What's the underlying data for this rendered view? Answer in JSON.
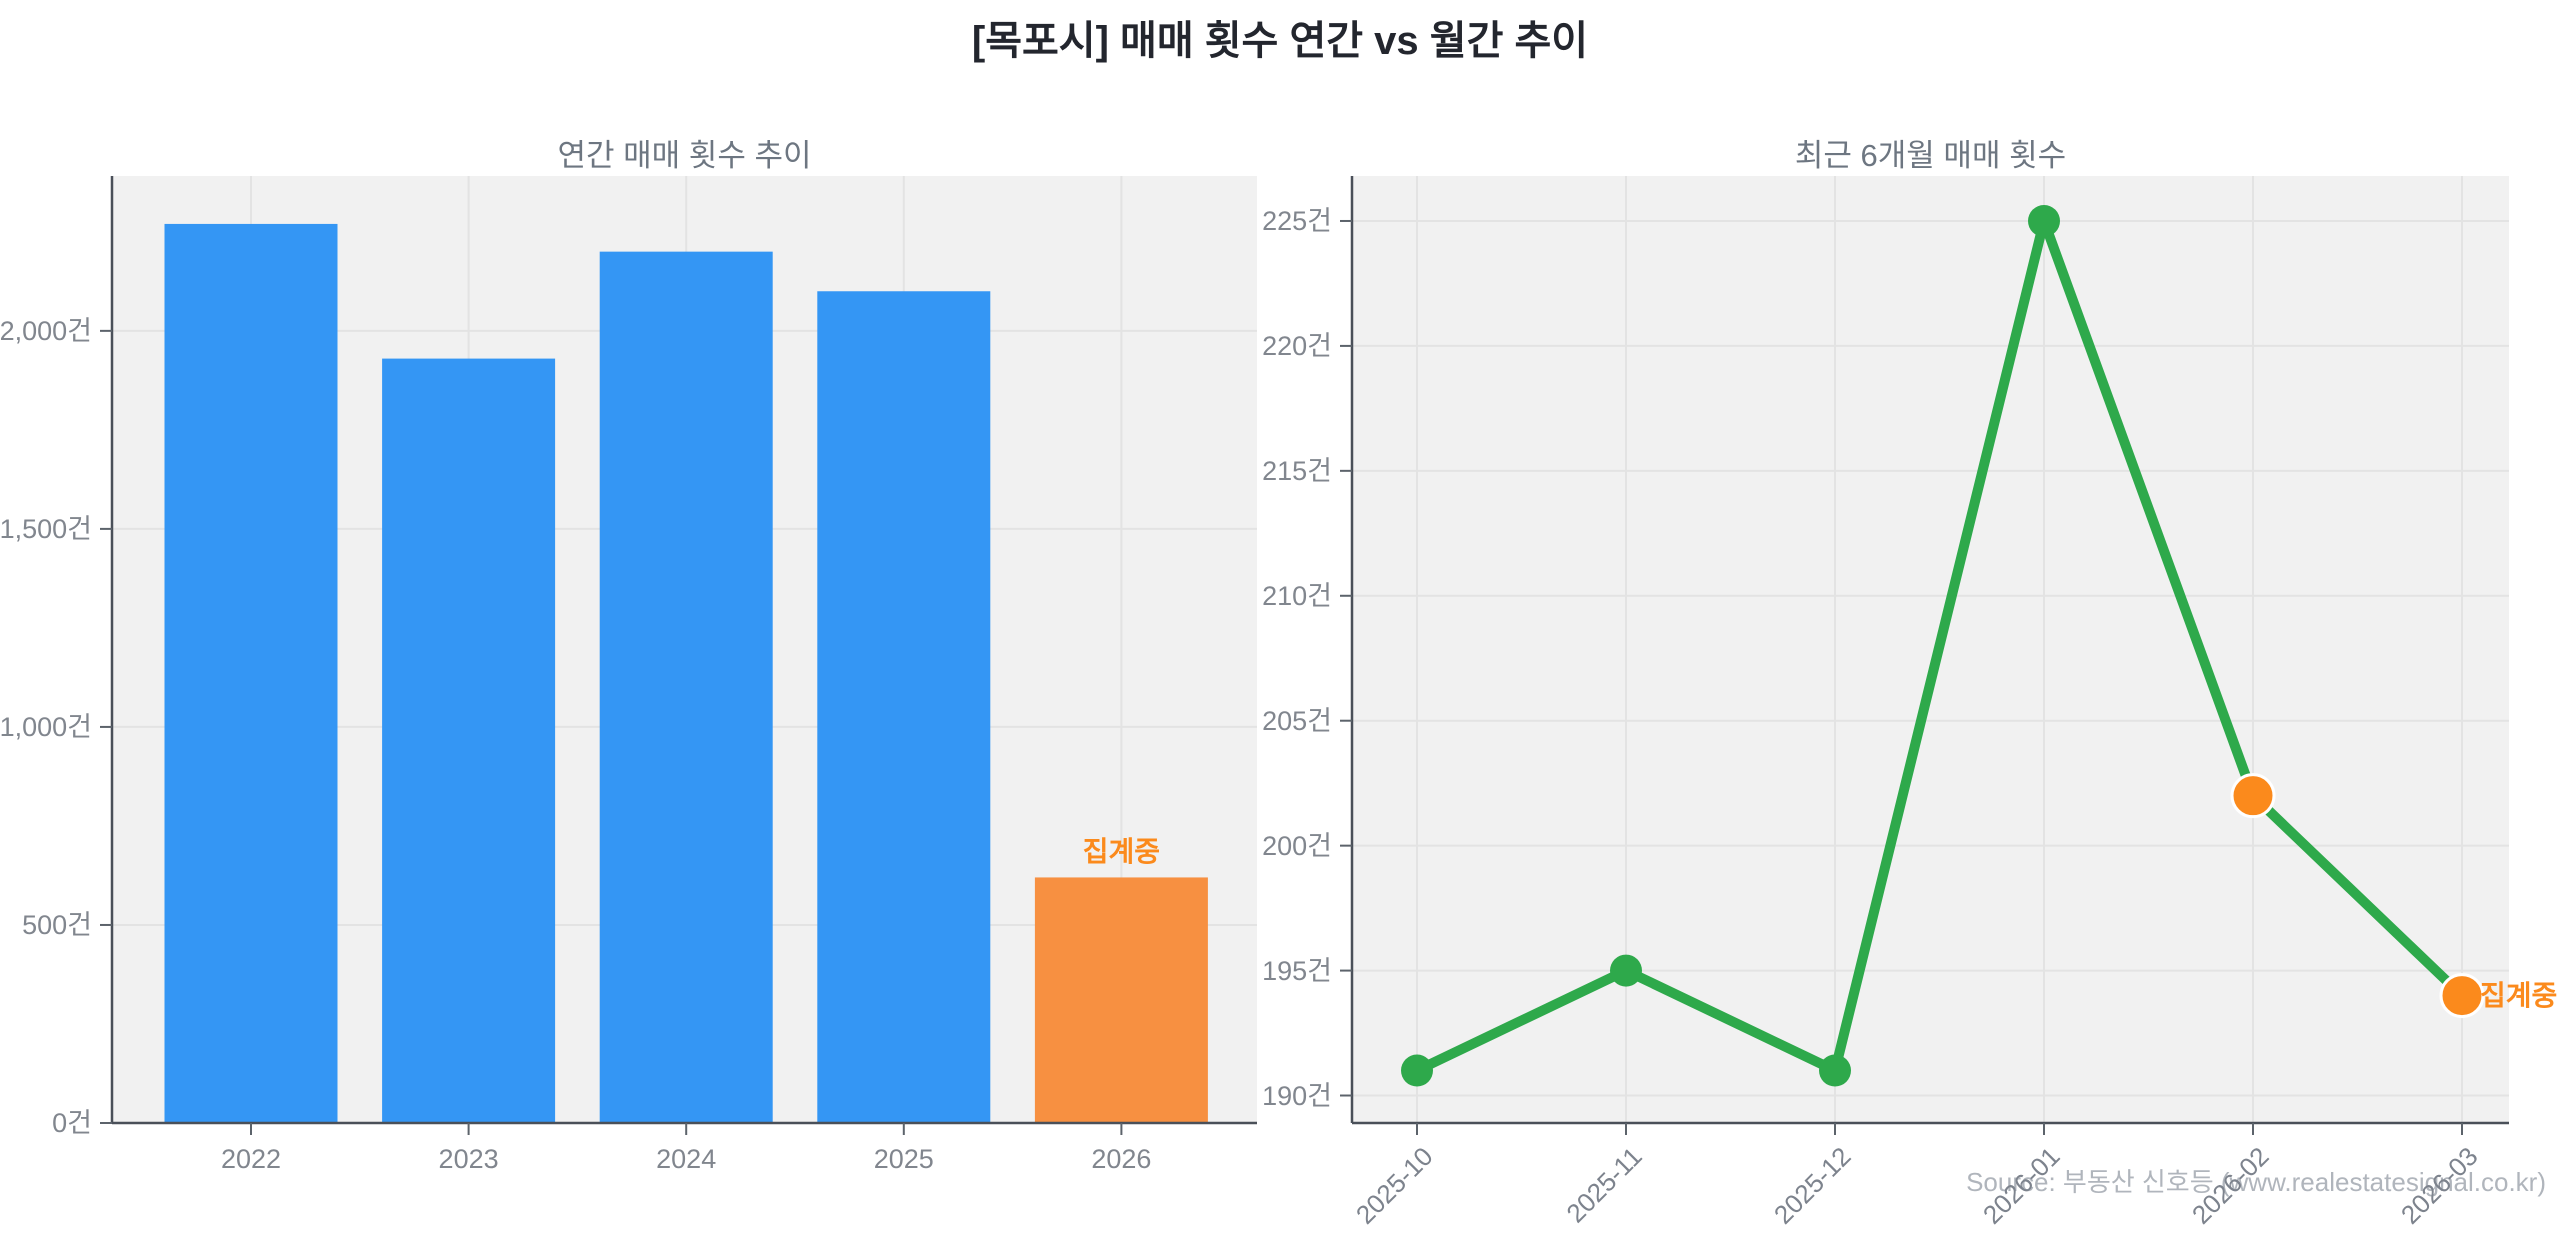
{
  "title": "[목포시] 매매 횟수 연간 vs 월간 추이",
  "source_note": "Source: 부동산 신호등 (www.realestatesignal.co.kr)",
  "unit_suffix": "건",
  "colors": {
    "bar_blue": "#3496f4",
    "bar_orange": "#f79041",
    "line_green": "#2ea94b",
    "marker_orange": "#fb8a1c",
    "annotation_orange": "#fb8a1c",
    "plot_background": "#f1f1f1",
    "gridline": "#e3e3e3",
    "spine": "#4a5059",
    "tick_label": "#81868e",
    "chart_title": "#6d7681",
    "main_title": "#23262e",
    "source_text": "#b0b5bc"
  },
  "chart_data": [
    {
      "type": "bar",
      "title": "연간 매매 횟수 추이",
      "categories": [
        "2022",
        "2023",
        "2024",
        "2025",
        "2026"
      ],
      "values": [
        2270,
        1930,
        2200,
        2100,
        620
      ],
      "bar_colors": [
        "#3496f4",
        "#3496f4",
        "#3496f4",
        "#3496f4",
        "#f79041"
      ],
      "annotation": {
        "text": "집계중",
        "target": "2026"
      },
      "y_ticks": [
        0,
        500,
        1000,
        1500,
        2000
      ],
      "tick_suffix": "건",
      "ylim": [
        0,
        2391
      ],
      "grid": true,
      "legend_position": "none"
    },
    {
      "type": "line",
      "title": "최근 6개월 매매 횟수",
      "x": [
        "2025-10",
        "2025-11",
        "2025-12",
        "2026-01",
        "2026-02",
        "2026-03"
      ],
      "values": [
        191,
        195,
        191,
        225,
        202,
        194
      ],
      "line_color": "#2ea94b",
      "marker_colors": [
        "#2ea94b",
        "#2ea94b",
        "#2ea94b",
        "#2ea94b",
        "#fb8a1c",
        "#fb8a1c"
      ],
      "annotation": {
        "text": "집계중",
        "target": "2026-03"
      },
      "y_ticks": [
        190,
        195,
        200,
        205,
        210,
        215,
        220,
        225
      ],
      "tick_suffix": "건",
      "ylim": [
        188.9,
        226.8
      ],
      "grid": true,
      "legend_position": "none"
    }
  ]
}
